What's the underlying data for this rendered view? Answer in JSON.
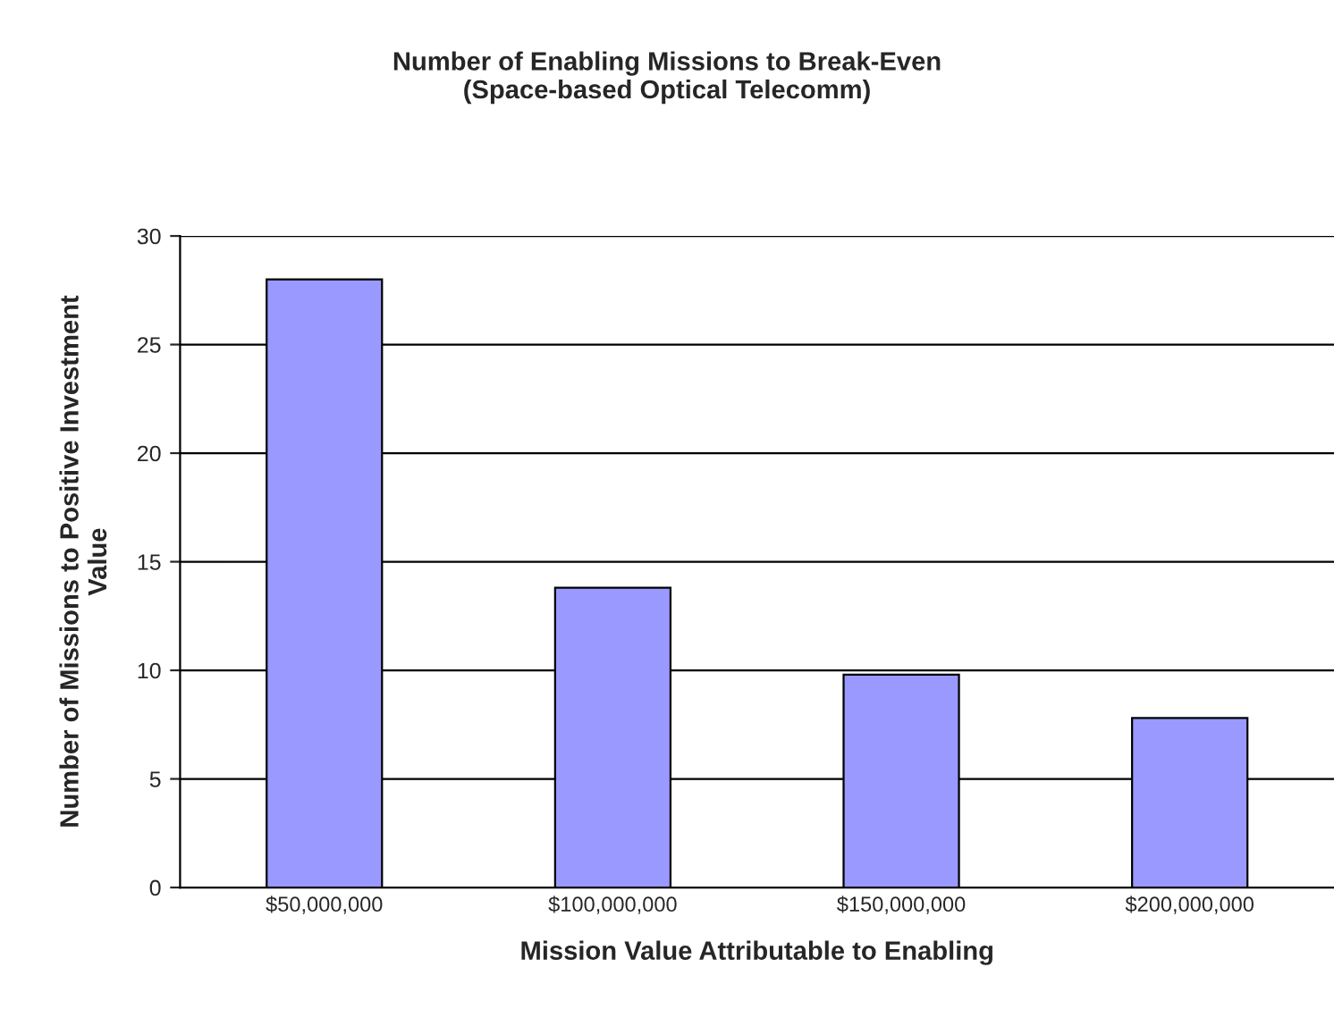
{
  "chart_data": {
    "type": "bar",
    "title": "Number of Enabling Missions to Break-Even\n(Space-based Optical Telecomm)",
    "xlabel": "Mission Value Attributable to Enabling",
    "ylabel": "Number of Missions to Positive Investment\nValue",
    "categories": [
      "$50,000,000",
      "$100,000,000",
      "$150,000,000",
      "$200,000,000"
    ],
    "values": [
      28,
      13.8,
      9.8,
      7.8
    ],
    "color": "#9999ff",
    "ylim": [
      0,
      30
    ],
    "yticks": [
      0,
      5,
      10,
      15,
      20,
      25,
      30
    ],
    "grid": "y",
    "legend": false
  }
}
